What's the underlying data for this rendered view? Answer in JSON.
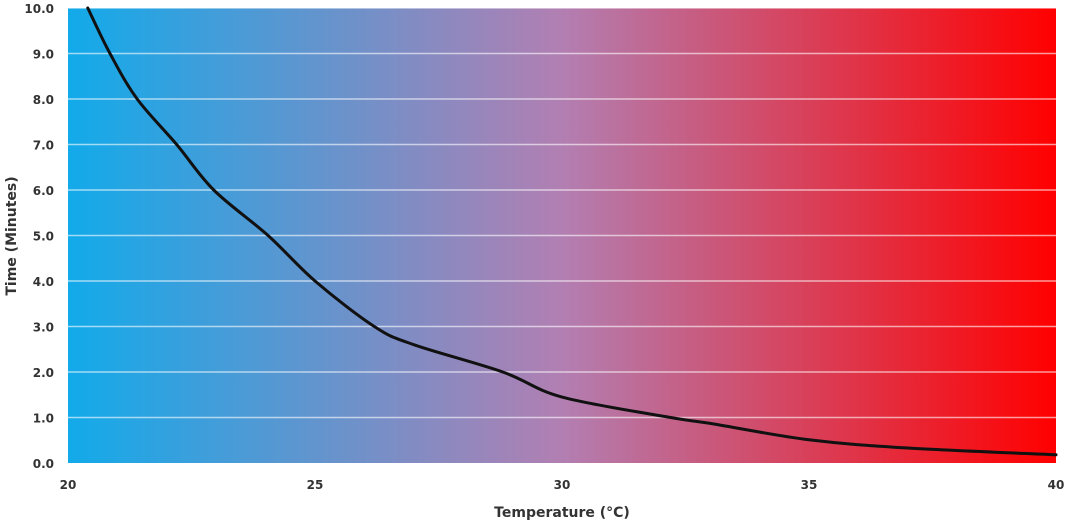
{
  "chart_data": {
    "type": "line",
    "title": "",
    "xlabel": "Temperature (°C)",
    "ylabel": "Time (Minutes)",
    "xlim": [
      20,
      40
    ],
    "ylim": [
      0,
      10
    ],
    "x_ticks": [
      "20",
      "25",
      "30",
      "35",
      "40"
    ],
    "y_ticks": [
      "0.0",
      "1.0",
      "2.0",
      "3.0",
      "4.0",
      "5.0",
      "6.0",
      "7.0",
      "8.0",
      "9.0",
      "10.0"
    ],
    "grid": "horizontal",
    "background_gradient": [
      "#12aaea",
      "#b27fb2",
      "#ff0000"
    ],
    "line_color": "#111111",
    "series": [
      {
        "x": [
          20.4,
          20.85,
          21.4,
          22.2,
          22.95,
          24.05,
          25,
          26.2,
          27,
          28.8,
          30,
          32.2,
          33,
          35,
          37,
          40
        ],
        "y": [
          10,
          9,
          8,
          7,
          6,
          5,
          4.0,
          3,
          2.6,
          2,
          1.45,
          1.0,
          0.87,
          0.51,
          0.33,
          0.18
        ]
      }
    ]
  }
}
